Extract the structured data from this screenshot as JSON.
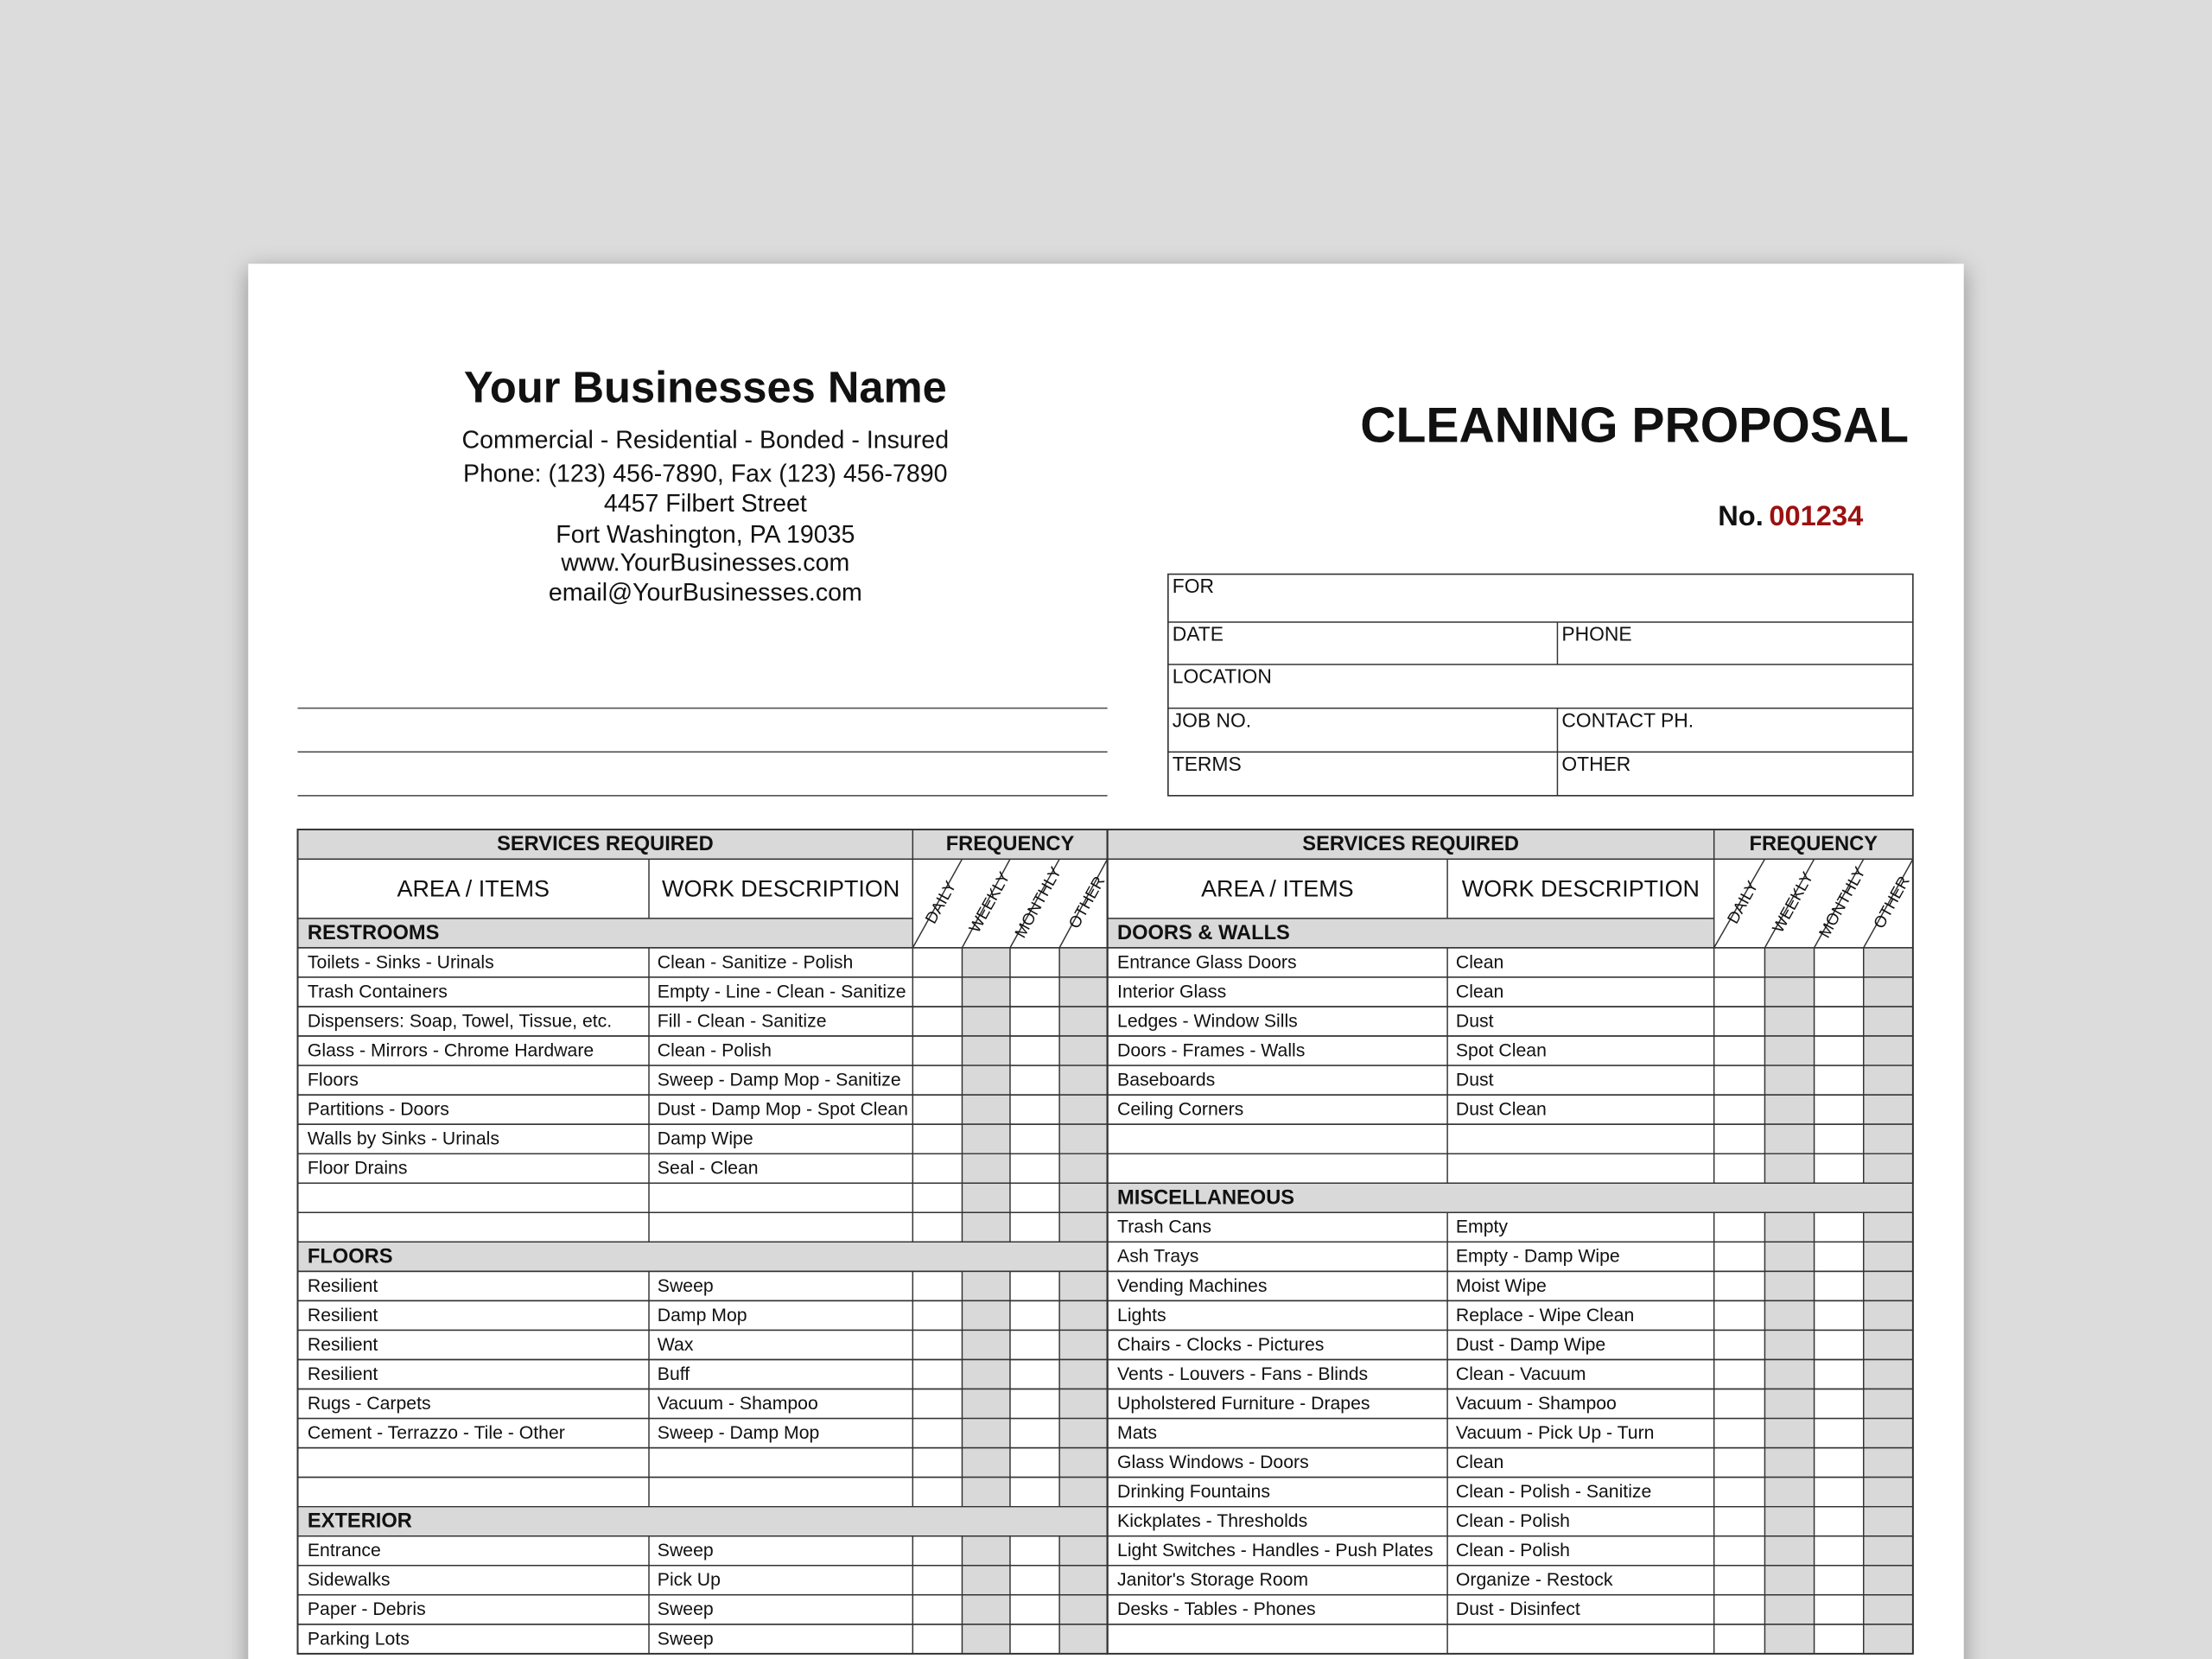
{
  "header": {
    "business_name": "Your Businesses Name",
    "lines": [
      "Commercial - Residential - Bonded - Insured",
      "Phone: (123) 456-7890, Fax (123) 456-7890",
      "4457 Filbert Street",
      "Fort Washington, PA 19035",
      "www.YourBusinesses.com",
      "email@YourBusinesses.com"
    ]
  },
  "title": "CLEANING PROPOSAL",
  "number_label": "No.",
  "number": "001234",
  "info": {
    "rows": [
      [
        "FOR"
      ],
      [
        "DATE",
        "PHONE"
      ],
      [
        "LOCATION"
      ],
      [
        "JOB NO.",
        "CONTACT PH."
      ],
      [
        "TERMS",
        "OTHER"
      ]
    ]
  },
  "table": {
    "services_header": "SERVICES REQUIRED",
    "frequency_header": "FREQUENCY",
    "area_header": "AREA / ITEMS",
    "work_header": "WORK DESCRIPTION",
    "frequency_columns": [
      "DAILY",
      "WEEKLY",
      "MONTHLY",
      "OTHER"
    ],
    "left": [
      {
        "title": "RESTROOMS",
        "items": [
          [
            "Toilets - Sinks - Urinals",
            "Clean - Sanitize - Polish"
          ],
          [
            "Trash Containers",
            "Empty - Line - Clean - Sanitize"
          ],
          [
            "Dispensers: Soap, Towel, Tissue, etc.",
            "Fill - Clean - Sanitize"
          ],
          [
            "Glass - Mirrors - Chrome Hardware",
            "Clean - Polish"
          ],
          [
            "Floors",
            "Sweep - Damp Mop - Sanitize"
          ],
          [
            "Partitions - Doors",
            "Dust - Damp Mop - Spot Clean"
          ],
          [
            "Walls by Sinks - Urinals",
            "Damp Wipe"
          ],
          [
            "Floor Drains",
            "Seal - Clean"
          ]
        ]
      },
      {
        "title": "FLOORS",
        "items": [
          [
            "Resilient",
            "Sweep"
          ],
          [
            "Resilient",
            "Damp Mop"
          ],
          [
            "Resilient",
            "Wax"
          ],
          [
            "Resilient",
            "Buff"
          ],
          [
            "Rugs - Carpets",
            "Vacuum - Shampoo"
          ],
          [
            "Cement - Terrazzo - Tile - Other",
            "Sweep - Damp Mop"
          ]
        ]
      },
      {
        "title": "EXTERIOR",
        "items": [
          [
            "Entrance",
            "Sweep"
          ],
          [
            "Sidewalks",
            "Pick Up"
          ],
          [
            "Paper - Debris",
            "Sweep"
          ],
          [
            "Parking Lots",
            "Sweep"
          ]
        ]
      }
    ],
    "right": [
      {
        "title": "DOORS & WALLS",
        "items": [
          [
            "Entrance Glass Doors",
            "Clean"
          ],
          [
            "Interior Glass",
            "Clean"
          ],
          [
            "Ledges - Window Sills",
            "Dust"
          ],
          [
            "Doors - Frames - Walls",
            "Spot Clean"
          ],
          [
            "Baseboards",
            "Dust"
          ],
          [
            "Ceiling Corners",
            "Dust Clean"
          ]
        ]
      },
      {
        "title": "MISCELLANEOUS",
        "items": [
          [
            "Trash Cans",
            "Empty"
          ],
          [
            "Ash Trays",
            "Empty - Damp Wipe"
          ],
          [
            "Vending Machines",
            "Moist Wipe"
          ],
          [
            "Lights",
            "Replace - Wipe Clean"
          ],
          [
            "Chairs - Clocks - Pictures",
            "Dust - Damp Wipe"
          ],
          [
            "Vents - Louvers - Fans - Blinds",
            "Clean - Vacuum"
          ],
          [
            "Upholstered Furniture - Drapes",
            "Vacuum - Shampoo"
          ],
          [
            "Mats",
            "Vacuum - Pick Up - Turn"
          ],
          [
            "Glass Windows - Doors",
            "Clean"
          ],
          [
            "Drinking Fountains",
            "Clean - Polish - Sanitize"
          ],
          [
            "Kickplates - Thresholds",
            "Clean - Polish"
          ],
          [
            "Light Switches - Handles - Push Plates",
            "Clean - Polish"
          ],
          [
            "Janitor's Storage Room",
            "Organize - Restock"
          ],
          [
            "Desks - Tables - Phones",
            "Dust - Disinfect"
          ]
        ]
      }
    ]
  }
}
